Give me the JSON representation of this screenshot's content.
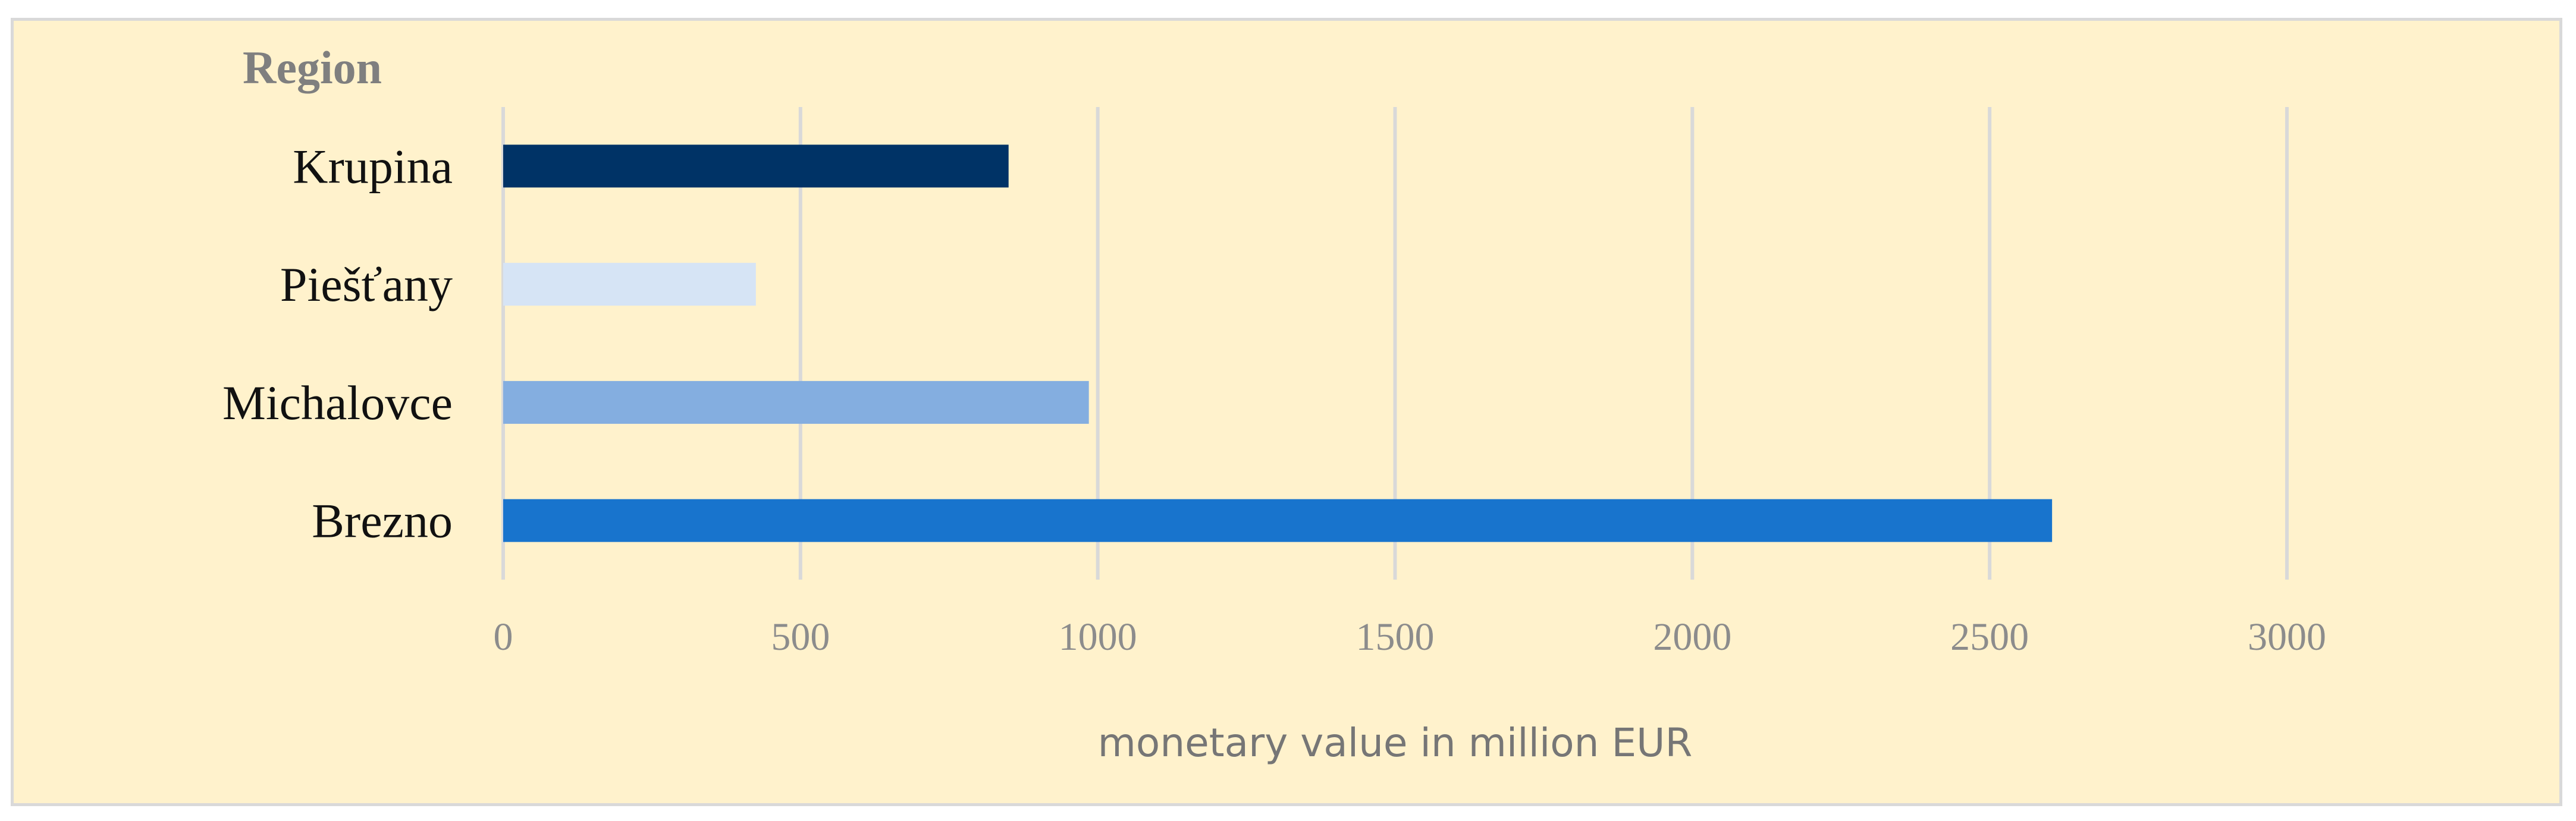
{
  "chart_data": {
    "type": "bar",
    "orientation": "horizontal",
    "legend_title": "Region",
    "categories": [
      "Krupina",
      "Piešťany",
      "Michalovce",
      "Brezno"
    ],
    "values": [
      850,
      425,
      985,
      2605
    ],
    "colors": [
      "#003366",
      "#d6e4f5",
      "#84aee0",
      "#1874cd"
    ],
    "xlabel": "monetary value in million EUR",
    "ylabel": "",
    "xlim": [
      0,
      3000
    ],
    "x_ticks": [
      "0",
      "500",
      "1000",
      "1500",
      "2000",
      "2500",
      "3000"
    ],
    "grid": true,
    "background": "#fff2cc"
  }
}
